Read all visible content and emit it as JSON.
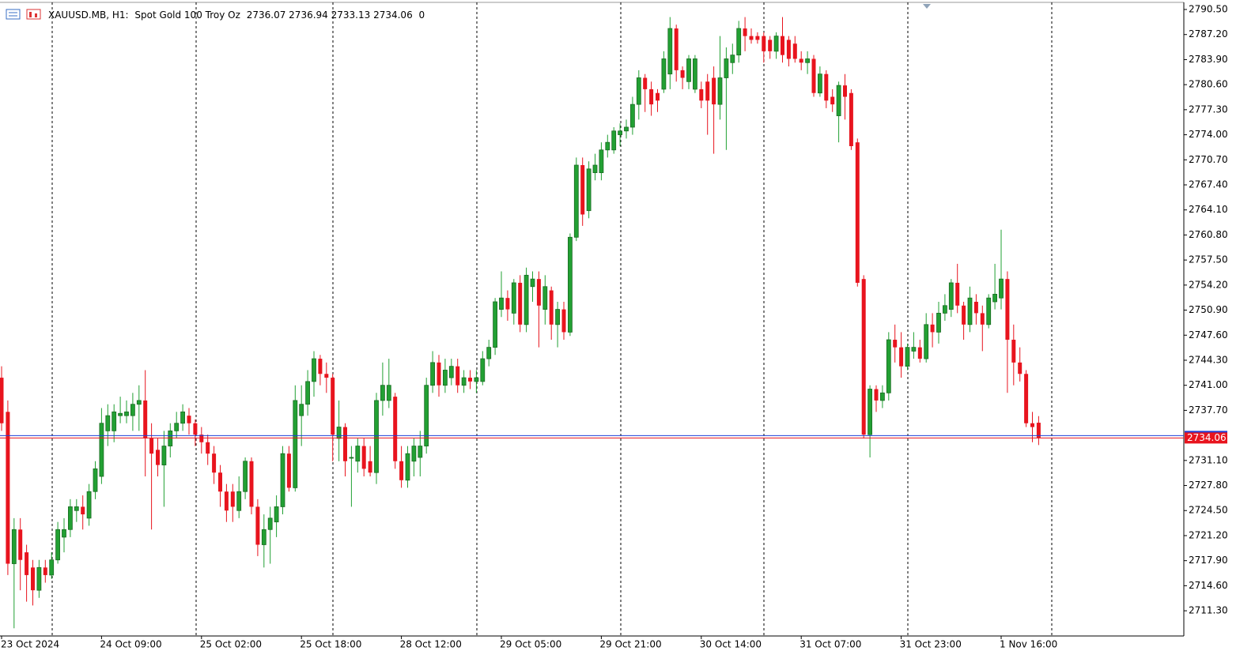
{
  "chart_data": {
    "type": "candlestick",
    "header": {
      "symbol": "XAUUSD.MB, H1:",
      "description": "Spot Gold 100 Troy Oz",
      "open": 2736.07,
      "high": 2736.94,
      "low": 2733.13,
      "close": 2734.06,
      "value": 0
    },
    "categories": [
      "23 Oct 2024",
      null,
      null,
      null,
      null,
      null,
      null,
      null,
      null,
      null,
      null,
      null,
      null,
      null,
      null,
      null,
      "24 Oct 09:00",
      null,
      null,
      null,
      null,
      null,
      null,
      null,
      null,
      null,
      null,
      null,
      null,
      null,
      null,
      null,
      "25 Oct 02:00",
      null,
      null,
      null,
      null,
      null,
      null,
      null,
      null,
      null,
      null,
      null,
      null,
      null,
      null,
      null,
      "25 Oct 18:00",
      null,
      null,
      null,
      null,
      null,
      null,
      null,
      null,
      null,
      null,
      null,
      null,
      null,
      null,
      null,
      "28 Oct 12:00",
      null,
      null,
      null,
      null,
      null,
      null,
      null,
      null,
      null,
      null,
      null,
      null,
      null,
      null,
      null,
      "29 Oct 05:00",
      null,
      null,
      null,
      null,
      null,
      null,
      null,
      null,
      null,
      null,
      null,
      null,
      null,
      null,
      null,
      "29 Oct 21:00",
      null,
      null,
      null,
      null,
      null,
      null,
      null,
      null,
      null,
      null,
      null,
      null,
      null,
      null,
      null,
      "30 Oct 14:00",
      null,
      null,
      null,
      null,
      null,
      null,
      null,
      null,
      null,
      null,
      null,
      null,
      null,
      null,
      null,
      "31 Oct 07:00",
      null,
      null,
      null,
      null,
      null,
      null,
      null,
      null,
      null,
      null,
      null,
      null,
      null,
      null,
      null,
      "31 Oct 23:00",
      null,
      null,
      null,
      null,
      null,
      null,
      null,
      null,
      null,
      null,
      null,
      null,
      null,
      null,
      null,
      "1 Nov 16:00",
      null,
      null,
      null,
      null,
      null,
      null
    ],
    "open": [
      2742,
      2737.5,
      2717.5,
      2722,
      2719,
      2717,
      2714,
      2717,
      2716,
      2718,
      2721,
      2722,
      2724.5,
      2725,
      2723.5,
      2727,
      2729,
      2735,
      2735,
      2737,
      2737,
      2737,
      2738.5,
      2739,
      2734,
      2732.5,
      2730.5,
      2733,
      2735,
      2736,
      2737,
      2736,
      2734.5,
      2733.5,
      2732,
      2729.5,
      2727,
      2727,
      2724.5,
      2727,
      2731,
      2725,
      2720,
      2722,
      2723,
      2725,
      2732,
      2727.5,
      2737,
      2738.5,
      2741.5,
      2744.5,
      2742.5,
      2742,
      2734,
      2735.5,
      2731.5,
      2731,
      2733,
      2731,
      2729.5,
      2739,
      2739,
      2739.5,
      2731,
      2728.5,
      2731,
      2731.5,
      2733,
      2741,
      2744,
      2741,
      2742,
      2743.5,
      2741,
      2742,
      2741.5,
      2741.5,
      2744.5,
      2746,
      2751,
      2752.5,
      2750.5,
      2754.5,
      2749,
      2754,
      2755,
      2751,
      2753.5,
      2749,
      2751,
      2748,
      2760.5,
      2770,
      2764,
      2769,
      2769,
      2772,
      2772,
      2774,
      2774.5,
      2775,
      2778,
      2781.5,
      2780,
      2779.5,
      2780,
      2782,
      2788,
      2782.5,
      2781,
      2780,
      2780,
      2781,
      2781.5,
      2778,
      2781.5,
      2783.5,
      2784.5,
      2788,
      2787,
      2787,
      2787,
      2786.5,
      2785,
      2787,
      2786.5,
      2786,
      2784,
      2783.5,
      2784,
      2779.5,
      2782,
      2779,
      2776.5,
      2780.5,
      2779.5,
      2773,
      2755,
      2734.5,
      2740.5,
      2739,
      2740,
      2747,
      2746,
      2743.5,
      2745.5,
      2746,
      2744.5,
      2749,
      2748,
      2750.5,
      2751,
      2754.5,
      2751.5,
      2749,
      2752,
      2750.5,
      2749,
      2752,
      2752.5,
      2755,
      2747,
      2744,
      2742.5,
      2736,
      2736.07
    ],
    "high": [
      2743.5,
      2739,
      2723.5,
      2723.5,
      2720,
      2718,
      2718,
      2718,
      2719,
      2723,
      2723.5,
      2726,
      2726,
      2726.5,
      2728,
      2731,
      2738,
      2738.5,
      2738.5,
      2739.5,
      2739,
      2740,
      2741,
      2743,
      2736,
      2734,
      2735,
      2736,
      2737.5,
      2738.5,
      2738,
      2736.5,
      2735.5,
      2734.5,
      2733,
      2730.5,
      2728,
      2728,
      2729,
      2731.5,
      2731.5,
      2726,
      2724,
      2725,
      2726.5,
      2733,
      2733,
      2741,
      2741,
      2743,
      2745.5,
      2745,
      2744,
      2742.5,
      2739,
      2736,
      2733,
      2734,
      2734,
      2733,
      2740,
      2744,
      2744.5,
      2740,
      2733,
      2733,
      2734,
      2735,
      2742,
      2745.5,
      2745,
      2744.5,
      2744.5,
      2744.5,
      2743,
      2743,
      2743,
      2745.5,
      2747,
      2752.5,
      2756,
      2753.5,
      2755,
      2755.5,
      2756.5,
      2756,
      2756,
      2755.5,
      2754,
      2752,
      2752,
      2761,
      2771,
      2771,
      2770.5,
      2771.5,
      2773,
      2774,
      2775,
      2775.5,
      2776,
      2779,
      2782.5,
      2782,
      2781,
      2780,
      2785,
      2789.5,
      2788.5,
      2783,
      2784.5,
      2784.5,
      2781,
      2782,
      2783,
      2787,
      2785.5,
      2786,
      2789,
      2789.5,
      2788,
      2787.5,
      2787.5,
      2787,
      2787.5,
      2789.5,
      2787,
      2787,
      2785,
      2785,
      2784.5,
      2783,
      2782.5,
      2780,
      2781,
      2782,
      2780,
      2773.5,
      2755.5,
      2741,
      2741,
      2741,
      2748,
      2749,
      2748,
      2746.5,
      2748,
      2747,
      2750.5,
      2750.5,
      2752,
      2753,
      2755,
      2757,
      2752,
      2754,
      2753,
      2751.5,
      2753,
      2757,
      2761.5,
      2756,
      2749,
      2746,
      2743,
      2737.5,
      2736.94
    ],
    "low": [
      2735,
      2716,
      2709,
      2714,
      2712.5,
      2712,
      2713,
      2715,
      2715.5,
      2717.5,
      2719,
      2721,
      2723,
      2722,
      2722.5,
      2726,
      2728,
      2733,
      2733.5,
      2736,
      2736,
      2735,
      2735,
      2729,
      2722,
      2729,
      2725,
      2731.5,
      2734,
      2735,
      2734.5,
      2733,
      2732,
      2730.5,
      2728,
      2725,
      2723,
      2723,
      2723.5,
      2726,
      2724,
      2718.5,
      2717,
      2717.5,
      2721,
      2724,
      2727,
      2727,
      2733,
      2737,
      2739.5,
      2741,
      2740,
      2731,
      2731,
      2729,
      2725,
      2729.5,
      2729,
      2729,
      2728,
      2737,
      2738,
      2730,
      2727.5,
      2727.5,
      2729,
      2729,
      2732,
      2740,
      2739.5,
      2740,
      2741,
      2740,
      2740,
      2740.5,
      2740,
      2741,
      2743.5,
      2745,
      2750,
      2749.5,
      2749,
      2748,
      2748,
      2752,
      2746,
      2749,
      2747,
      2746,
      2747,
      2747.5,
      2760,
      2762,
      2763,
      2768,
      2768,
      2771,
      2771.5,
      2772.5,
      2773.5,
      2774,
      2776,
      2777,
      2776.5,
      2777,
      2779.5,
      2780,
      2781,
      2780,
      2780,
      2779.5,
      2777.5,
      2774,
      2771.5,
      2776,
      2772,
      2782,
      2783.5,
      2785,
      2786,
      2786,
      2783.5,
      2784,
      2784,
      2783.5,
      2783,
      2783.5,
      2782.5,
      2782,
      2779,
      2779,
      2777.5,
      2777,
      2773,
      2776,
      2772,
      2754,
      2734,
      2731.5,
      2737.5,
      2738,
      2739,
      2744,
      2742,
      2743,
      2744.5,
      2744,
      2744,
      2746,
      2746.5,
      2749.5,
      2750,
      2750.5,
      2747,
      2748,
      2749,
      2745.5,
      2748.5,
      2751,
      2751,
      2740,
      2741,
      2741.5,
      2735.5,
      2733.5,
      2733.13
    ],
    "close": [
      2736,
      2717.5,
      2722,
      2718,
      2716,
      2714,
      2717,
      2716,
      2718,
      2722,
      2722,
      2725,
      2725,
      2724,
      2727,
      2730,
      2736,
      2737,
      2737.5,
      2737.3,
      2737.5,
      2738.5,
      2739,
      2734,
      2732,
      2730.5,
      2733,
      2735,
      2736,
      2737.5,
      2736,
      2734.5,
      2733.5,
      2732,
      2729.5,
      2727,
      2724.5,
      2725,
      2727,
      2731,
      2725,
      2720,
      2722,
      2723.5,
      2725,
      2732,
      2727.5,
      2739,
      2738.5,
      2741.5,
      2744.5,
      2742.5,
      2742,
      2734.5,
      2735.5,
      2731,
      2731.5,
      2733,
      2730,
      2729.5,
      2739,
      2741,
      2741,
      2731,
      2728.5,
      2732,
      2733,
      2733,
      2741,
      2744,
      2741,
      2743,
      2743.5,
      2741,
      2742,
      2741.5,
      2742,
      2744.5,
      2746,
      2752,
      2752.5,
      2751,
      2754.5,
      2749,
      2755.5,
      2755,
      2751.5,
      2754,
      2749,
      2751,
      2748,
      2760.5,
      2770,
      2763.5,
      2769.5,
      2770,
      2772,
      2773,
      2774.5,
      2774.5,
      2775,
      2778,
      2781.5,
      2780,
      2778,
      2778.5,
      2784,
      2788,
      2782.5,
      2781.5,
      2784,
      2784,
      2778.5,
      2778.5,
      2778,
      2781.5,
      2784,
      2784.5,
      2788,
      2787,
      2786.5,
      2786.5,
      2785,
      2785,
      2787,
      2784.5,
      2784,
      2784,
      2783.5,
      2784,
      2779.5,
      2782,
      2778.5,
      2778,
      2780.5,
      2779,
      2772.5,
      2754.5,
      2734.5,
      2740.5,
      2739,
      2740,
      2747,
      2746,
      2743.5,
      2746,
      2746,
      2744.5,
      2749,
      2748,
      2750.5,
      2751.5,
      2754.5,
      2751.5,
      2749,
      2752.5,
      2750.5,
      2749,
      2752.5,
      2753,
      2755,
      2747,
      2744,
      2742.5,
      2736,
      2735.5,
      2734.06
    ],
    "up_color": "#22a033",
    "down_color": "#e8141e",
    "ylim": [
      2707.98,
      2791.75
    ],
    "yticks": [
      {
        "value": 2790.5,
        "label": "2790.50"
      },
      {
        "value": 2787.2,
        "label": "2787.20"
      },
      {
        "value": 2783.9,
        "label": "2783.90"
      },
      {
        "value": 2780.6,
        "label": "2780.60"
      },
      {
        "value": 2777.3,
        "label": "2777.30"
      },
      {
        "value": 2774,
        "label": "2774.00"
      },
      {
        "value": 2770.7,
        "label": "2770.70"
      },
      {
        "value": 2767.4,
        "label": "2767.40"
      },
      {
        "value": 2764.1,
        "label": "2764.10"
      },
      {
        "value": 2760.8,
        "label": "2760.80"
      },
      {
        "value": 2757.5,
        "label": "2757.50"
      },
      {
        "value": 2754.2,
        "label": "2754.20"
      },
      {
        "value": 2750.9,
        "label": "2750.90"
      },
      {
        "value": 2747.6,
        "label": "2747.60"
      },
      {
        "value": 2744.3,
        "label": "2744.30"
      },
      {
        "value": 2741,
        "label": "2741.00"
      },
      {
        "value": 2737.7,
        "label": "2737.70"
      },
      {
        "value": 2731.1,
        "label": "2731.10"
      },
      {
        "value": 2727.8,
        "label": "2727.80"
      },
      {
        "value": 2724.5,
        "label": "2724.50"
      },
      {
        "value": 2721.2,
        "label": "2721.20"
      },
      {
        "value": 2717.9,
        "label": "2717.90"
      },
      {
        "value": 2714.6,
        "label": "2714.60"
      },
      {
        "value": 2711.3,
        "label": "2711.30"
      }
    ],
    "grid": false
  }
}
